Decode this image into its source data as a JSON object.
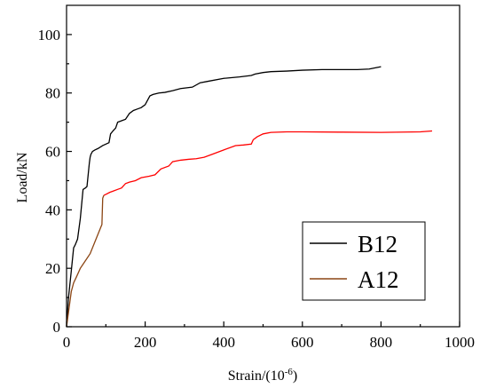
{
  "chart_data": {
    "type": "line",
    "title": "",
    "xlabel": "Strain/(10",
    "xlabel_sup": "-6",
    "xlabel_end": ")",
    "ylabel": "Load/kN",
    "xlim": [
      0,
      1000
    ],
    "ylim": [
      0,
      110
    ],
    "xticks": [
      0,
      200,
      400,
      600,
      800,
      1000
    ],
    "yticks": [
      0,
      20,
      40,
      60,
      80,
      100
    ],
    "grid": false,
    "legend_position": "bottom-right",
    "series": [
      {
        "name": "B12",
        "color": "#000000",
        "x": [
          0,
          5,
          12,
          18,
          22,
          28,
          35,
          42,
          48,
          52,
          58,
          60,
          62,
          66,
          72,
          80,
          92,
          100,
          108,
          112,
          118,
          125,
          130,
          140,
          150,
          160,
          170,
          180,
          190,
          200,
          212,
          220,
          235,
          250,
          270,
          290,
          320,
          340,
          360,
          400,
          440,
          470,
          480,
          500,
          520,
          560,
          600,
          650,
          700,
          740,
          770,
          800
        ],
        "y": [
          0,
          10,
          19,
          27,
          28,
          30,
          37,
          47,
          47.5,
          48,
          56,
          58,
          59,
          60,
          60.5,
          61,
          62,
          62.5,
          63,
          66,
          67,
          68,
          70,
          70.5,
          71,
          73,
          74,
          74.5,
          75,
          76,
          79,
          79.5,
          80,
          80.2,
          80.8,
          81.5,
          82,
          83.5,
          84,
          85,
          85.5,
          86,
          86.5,
          87,
          87.3,
          87.5,
          87.8,
          88,
          88,
          88,
          88.2,
          89
        ]
      },
      {
        "name": "A12",
        "color": "#ff0000",
        "color_early": "#8b4513",
        "x": [
          0,
          5,
          12,
          18,
          25,
          35,
          45,
          60,
          75,
          90,
          92,
          95,
          100,
          110,
          120,
          130,
          140,
          150,
          160,
          175,
          190,
          210,
          225,
          240,
          260,
          270,
          290,
          310,
          330,
          350,
          370,
          400,
          430,
          450,
          470,
          475,
          485,
          500,
          520,
          560,
          600,
          700,
          800,
          900,
          930
        ],
        "y": [
          0,
          5,
          12,
          15,
          17,
          20,
          22,
          25,
          30,
          35,
          44,
          45,
          45.3,
          46,
          46.5,
          47,
          47.5,
          49,
          49.5,
          50,
          51,
          51.5,
          52,
          54,
          55,
          56.5,
          57,
          57.3,
          57.5,
          58,
          59,
          60.5,
          62,
          62.2,
          62.5,
          64,
          65,
          66,
          66.5,
          66.7,
          66.7,
          66.6,
          66.5,
          66.7,
          67
        ]
      }
    ]
  }
}
